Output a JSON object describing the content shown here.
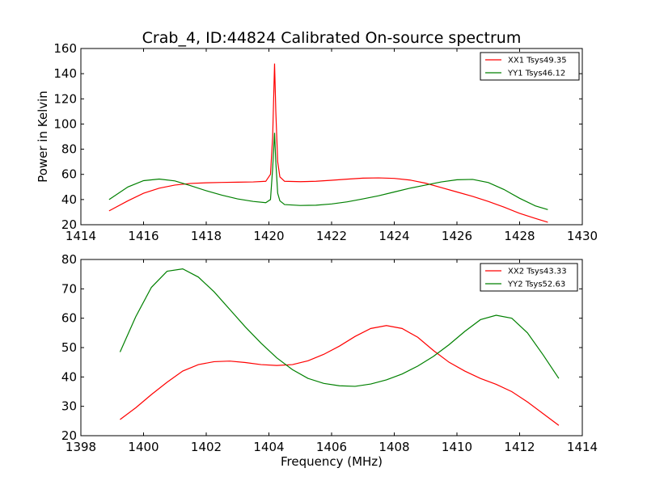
{
  "figure": {
    "title": "Crab_4, ID:44824 Calibrated On-source spectrum"
  },
  "chart_data": [
    {
      "type": "line",
      "title": "Crab_4, ID:44824 Calibrated On-source spectrum",
      "xlabel": "",
      "ylabel": "Power in Kelvin",
      "xlim": [
        1414,
        1430
      ],
      "ylim": [
        20,
        160
      ],
      "xticks": [
        1414,
        1416,
        1418,
        1420,
        1422,
        1424,
        1426,
        1428,
        1430
      ],
      "yticks": [
        20,
        40,
        60,
        80,
        100,
        120,
        140,
        160
      ],
      "grid": false,
      "legend_position": "top-right",
      "series": [
        {
          "name": "XX1 Tsys49.35",
          "color": "#ff0000",
          "x": [
            1414.9,
            1415.5,
            1416.0,
            1416.5,
            1417.0,
            1417.5,
            1418.0,
            1418.5,
            1419.0,
            1419.5,
            1419.9,
            1420.05,
            1420.12,
            1420.18,
            1420.22,
            1420.28,
            1420.35,
            1420.5,
            1421.0,
            1421.5,
            1422.0,
            1422.5,
            1423.0,
            1423.5,
            1424.0,
            1424.5,
            1425.0,
            1425.5,
            1426.0,
            1426.5,
            1427.0,
            1427.5,
            1428.0,
            1428.5,
            1428.9
          ],
          "y": [
            31,
            39,
            45,
            49,
            51.5,
            52.8,
            53.3,
            53.6,
            53.8,
            54,
            54.5,
            60,
            90,
            148,
            110,
            70,
            58,
            54.5,
            54.2,
            54.5,
            55.3,
            56.2,
            57,
            57.2,
            56.8,
            55.5,
            53,
            49.5,
            46,
            42.5,
            38.5,
            34,
            29,
            25,
            22
          ]
        },
        {
          "name": "YY1 Tsys46.12",
          "color": "#008000",
          "x": [
            1414.9,
            1415.5,
            1416.0,
            1416.5,
            1417.0,
            1417.5,
            1418.0,
            1418.5,
            1419.0,
            1419.5,
            1419.9,
            1420.05,
            1420.12,
            1420.18,
            1420.22,
            1420.28,
            1420.35,
            1420.5,
            1421.0,
            1421.5,
            1422.0,
            1422.5,
            1423.0,
            1423.5,
            1424.0,
            1424.5,
            1425.0,
            1425.5,
            1426.0,
            1426.5,
            1427.0,
            1427.5,
            1428.0,
            1428.5,
            1428.9
          ],
          "y": [
            40,
            50,
            55,
            56.3,
            54.8,
            51,
            47,
            43.5,
            40.5,
            38.5,
            37.5,
            40,
            65,
            93,
            70,
            45,
            39,
            36,
            35.3,
            35.5,
            36.5,
            38.2,
            40.5,
            43,
            46,
            49,
            51.5,
            54,
            55.7,
            56,
            53.5,
            48,
            41,
            35,
            32
          ]
        }
      ]
    },
    {
      "type": "line",
      "title": "",
      "xlabel": "Frequency (MHz)",
      "ylabel": "",
      "xlim": [
        1398,
        1414
      ],
      "ylim": [
        20,
        80
      ],
      "xticks": [
        1398,
        1400,
        1402,
        1404,
        1406,
        1408,
        1410,
        1412,
        1414
      ],
      "yticks": [
        20,
        30,
        40,
        50,
        60,
        70,
        80
      ],
      "grid": false,
      "legend_position": "top-right",
      "series": [
        {
          "name": "XX2 Tsys43.33",
          "color": "#ff0000",
          "x": [
            1399.25,
            1399.75,
            1400.25,
            1400.75,
            1401.25,
            1401.75,
            1402.25,
            1402.75,
            1403.25,
            1403.75,
            1404.25,
            1404.75,
            1405.25,
            1405.75,
            1406.25,
            1406.75,
            1407.25,
            1407.75,
            1408.25,
            1408.75,
            1409.25,
            1409.75,
            1410.25,
            1410.75,
            1411.25,
            1411.75,
            1412.25,
            1412.75,
            1413.25
          ],
          "y": [
            25.5,
            29.5,
            34,
            38.2,
            42,
            44.2,
            45.2,
            45.4,
            44.9,
            44.2,
            43.9,
            44.2,
            45.5,
            47.7,
            50.5,
            53.8,
            56.5,
            57.5,
            56.5,
            53.5,
            49,
            45,
            42,
            39.5,
            37.5,
            35,
            31.5,
            27.5,
            23.5
          ]
        },
        {
          "name": "YY2 Tsys52.63",
          "color": "#008000",
          "x": [
            1399.25,
            1399.75,
            1400.25,
            1400.75,
            1401.25,
            1401.75,
            1402.25,
            1402.75,
            1403.25,
            1403.75,
            1404.25,
            1404.75,
            1405.25,
            1405.75,
            1406.25,
            1406.75,
            1407.25,
            1407.75,
            1408.25,
            1408.75,
            1409.25,
            1409.75,
            1410.25,
            1410.75,
            1411.25,
            1411.75,
            1412.25,
            1412.75,
            1413.25
          ],
          "y": [
            48.5,
            60.5,
            70.5,
            76,
            76.8,
            74,
            69,
            63,
            57,
            51.5,
            46.5,
            42.5,
            39.5,
            37.8,
            37,
            36.8,
            37.6,
            39,
            41,
            43.7,
            47,
            51,
            55.5,
            59.5,
            61,
            60,
            55,
            47.5,
            39.5
          ]
        }
      ]
    }
  ]
}
